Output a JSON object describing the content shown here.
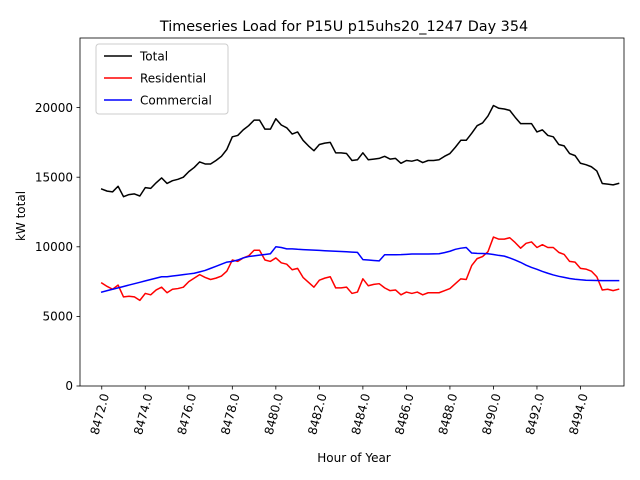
{
  "chart_data": {
    "type": "line",
    "title": "Timeseries Load for P15U p15uhs20_1247  Day 354",
    "xlabel": "Hour of Year",
    "ylabel": "kW total",
    "xlim": [
      8471.0,
      8496.0
    ],
    "ylim": [
      0,
      25000
    ],
    "x_ticks": [
      8472,
      8474,
      8476,
      8478,
      8480,
      8482,
      8484,
      8486,
      8488,
      8490,
      8492,
      8494
    ],
    "x_tick_labels": [
      "8472.0",
      "8474.0",
      "8476.0",
      "8478.0",
      "8480.0",
      "8482.0",
      "8484.0",
      "8486.0",
      "8488.0",
      "8490.0",
      "8492.0",
      "8494.0"
    ],
    "y_ticks": [
      0,
      5000,
      10000,
      15000,
      20000
    ],
    "y_tick_labels": [
      "0",
      "5000",
      "10000",
      "15000",
      "20000"
    ],
    "legend_position": "top-left",
    "x_start": 8472.0,
    "x_step": 0.25,
    "series": [
      {
        "name": "Total",
        "color": "#000000",
        "values": [
          14150,
          14000,
          13950,
          14350,
          13600,
          13750,
          13800,
          13650,
          14250,
          14200,
          14600,
          14950,
          14550,
          14750,
          14850,
          15000,
          15400,
          15700,
          16100,
          15950,
          15950,
          16200,
          16500,
          17000,
          17900,
          18000,
          18400,
          18700,
          19100,
          19100,
          18450,
          18450,
          19200,
          18750,
          18550,
          18100,
          18250,
          17650,
          17250,
          16900,
          17350,
          17450,
          17500,
          16750,
          16750,
          16700,
          16200,
          16250,
          16750,
          16250,
          16300,
          16350,
          16500,
          16300,
          16350,
          16000,
          16200,
          16150,
          16250,
          16050,
          16200,
          16200,
          16250,
          16500,
          16700,
          17150,
          17650,
          17650,
          18150,
          18700,
          18900,
          19400,
          20150,
          19950,
          19900,
          19800,
          19300,
          18850,
          18850,
          18850,
          18250,
          18400,
          18000,
          17900,
          17350,
          17250,
          16700,
          16550,
          16000,
          15900,
          15750,
          15450,
          14550,
          14500,
          14450,
          14550
        ]
      },
      {
        "name": "Residential",
        "color": "#ff0000",
        "values": [
          7400,
          7150,
          6950,
          7250,
          6400,
          6450,
          6400,
          6150,
          6650,
          6550,
          6900,
          7100,
          6700,
          6950,
          7000,
          7100,
          7500,
          7750,
          8000,
          7800,
          7650,
          7750,
          7900,
          8250,
          9050,
          8950,
          9200,
          9350,
          9750,
          9750,
          9050,
          8950,
          9200,
          8850,
          8750,
          8350,
          8450,
          7800,
          7450,
          7100,
          7600,
          7750,
          7850,
          7050,
          7050,
          7100,
          6650,
          6750,
          7700,
          7200,
          7300,
          7350,
          7050,
          6850,
          6900,
          6550,
          6750,
          6650,
          6750,
          6550,
          6700,
          6700,
          6700,
          6850,
          7000,
          7350,
          7700,
          7650,
          8650,
          9150,
          9300,
          9650,
          10700,
          10550,
          10550,
          10650,
          10300,
          9900,
          10250,
          10350,
          9950,
          10150,
          9950,
          9950,
          9600,
          9450,
          8950,
          8900,
          8450,
          8400,
          8250,
          7850,
          6900,
          6950,
          6850,
          6950
        ]
      },
      {
        "name": "Commercial",
        "color": "#0000ff",
        "values": [
          6750,
          6850,
          6950,
          7050,
          7150,
          7250,
          7350,
          7450,
          7550,
          7650,
          7750,
          7850,
          7850,
          7900,
          7950,
          8000,
          8050,
          8100,
          8200,
          8300,
          8450,
          8600,
          8750,
          8900,
          8950,
          9050,
          9200,
          9300,
          9350,
          9400,
          9450,
          9500,
          10000,
          9950,
          9850,
          9850,
          9820,
          9800,
          9780,
          9760,
          9740,
          9720,
          9700,
          9680,
          9660,
          9640,
          9620,
          9600,
          9080,
          9050,
          9020,
          8990,
          9430,
          9430,
          9430,
          9440,
          9460,
          9480,
          9480,
          9480,
          9480,
          9490,
          9500,
          9580,
          9680,
          9820,
          9900,
          9950,
          9550,
          9530,
          9520,
          9500,
          9450,
          9380,
          9330,
          9200,
          9050,
          8880,
          8680,
          8520,
          8380,
          8230,
          8100,
          7980,
          7880,
          7800,
          7720,
          7670,
          7630,
          7600,
          7590,
          7580,
          7570,
          7570,
          7570,
          7570
        ]
      }
    ]
  }
}
